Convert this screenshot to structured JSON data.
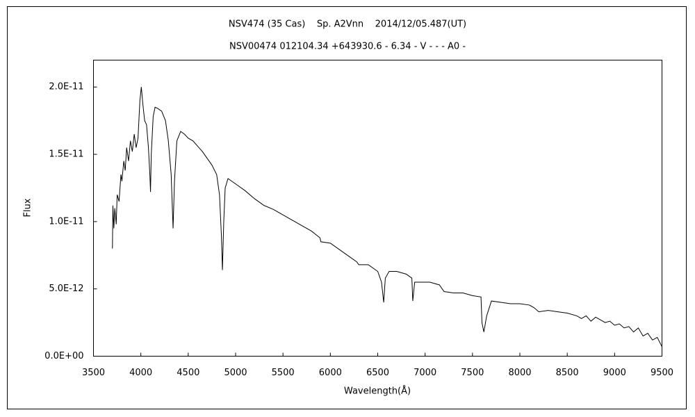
{
  "chart_data": {
    "type": "line",
    "title": "NSV474 (35 Cas)    Sp. A2Vnn    2014/12/05.487(UT)",
    "subtitle": "NSV00474 012104.34 +643930.6 - 6.34 - V - - - A0 -",
    "x_label": "Wavelength(Å)",
    "y_label": "Flux",
    "color": "#000000",
    "xlim": [
      3500,
      9500
    ],
    "xticks": [
      3500,
      4000,
      4500,
      5000,
      5500,
      6000,
      6500,
      7000,
      7500,
      8000,
      8500,
      9000,
      9500
    ],
    "ylim": [
      0,
      2.2e-11
    ],
    "yticks": [
      {
        "value": 0,
        "label": "0.0E+00"
      },
      {
        "value": 5e-12,
        "label": "5.0E-12"
      },
      {
        "value": 1e-11,
        "label": "1.0E-11"
      },
      {
        "value": 1.5e-11,
        "label": "1.5E-11"
      },
      {
        "value": 2e-11,
        "label": "2.0E-11"
      }
    ],
    "x": [
      3700,
      3705,
      3715,
      3725,
      3740,
      3750,
      3770,
      3790,
      3800,
      3820,
      3835,
      3850,
      3870,
      3890,
      3910,
      3930,
      3950,
      3970,
      3990,
      4005,
      4020,
      4040,
      4060,
      4080,
      4095,
      4102,
      4110,
      4130,
      4150,
      4180,
      4220,
      4260,
      4290,
      4320,
      4340,
      4355,
      4380,
      4420,
      4460,
      4500,
      4550,
      4600,
      4650,
      4700,
      4750,
      4800,
      4830,
      4850,
      4861,
      4875,
      4890,
      4920,
      4960,
      5000,
      5100,
      5200,
      5300,
      5400,
      5500,
      5600,
      5700,
      5800,
      5890,
      5900,
      6000,
      6100,
      6200,
      6280,
      6300,
      6400,
      6500,
      6540,
      6563,
      6580,
      6620,
      6700,
      6800,
      6860,
      6870,
      6890,
      6950,
      7050,
      7150,
      7200,
      7300,
      7400,
      7500,
      7590,
      7600,
      7620,
      7650,
      7700,
      7800,
      7900,
      8000,
      8100,
      8150,
      8200,
      8300,
      8400,
      8500,
      8600,
      8650,
      8700,
      8750,
      8800,
      8850,
      8900,
      8950,
      9000,
      9050,
      9100,
      9150,
      9200,
      9250,
      9300,
      9350,
      9400,
      9450,
      9500
    ],
    "values": [
      8e-12,
      1.12e-11,
      9.5e-12,
      1.1e-11,
      9.8e-12,
      1.2e-11,
      1.15e-11,
      1.35e-11,
      1.3e-11,
      1.45e-11,
      1.38e-11,
      1.55e-11,
      1.45e-11,
      1.6e-11,
      1.52e-11,
      1.65e-11,
      1.55e-11,
      1.62e-11,
      1.9e-11,
      2e-11,
      1.88e-11,
      1.75e-11,
      1.72e-11,
      1.55e-11,
      1.35e-11,
      1.22e-11,
      1.5e-11,
      1.78e-11,
      1.85e-11,
      1.84e-11,
      1.82e-11,
      1.75e-11,
      1.6e-11,
      1.35e-11,
      9.5e-12,
      1.3e-11,
      1.6e-11,
      1.67e-11,
      1.65e-11,
      1.62e-11,
      1.6e-11,
      1.56e-11,
      1.52e-11,
      1.47e-11,
      1.42e-11,
      1.35e-11,
      1.2e-11,
      9e-12,
      6.4e-12,
      1e-11,
      1.25e-11,
      1.32e-11,
      1.3e-11,
      1.28e-11,
      1.23e-11,
      1.17e-11,
      1.12e-11,
      1.09e-11,
      1.05e-11,
      1.01e-11,
      9.7e-12,
      9.3e-12,
      8.8e-12,
      8.5e-12,
      8.4e-12,
      7.9e-12,
      7.4e-12,
      7e-12,
      6.8e-12,
      6.8e-12,
      6.3e-12,
      5.5e-12,
      4e-12,
      5.8e-12,
      6.3e-12,
      6.3e-12,
      6.1e-12,
      5.8e-12,
      4.1e-12,
      5.5e-12,
      5.5e-12,
      5.5e-12,
      5.3e-12,
      4.8e-12,
      4.7e-12,
      4.7e-12,
      4.5e-12,
      4.4e-12,
      2.5e-12,
      1.8e-12,
      3e-12,
      4.1e-12,
      4e-12,
      3.9e-12,
      3.9e-12,
      3.8e-12,
      3.6e-12,
      3.3e-12,
      3.4e-12,
      3.3e-12,
      3.2e-12,
      3e-12,
      2.8e-12,
      3e-12,
      2.6e-12,
      2.9e-12,
      2.7e-12,
      2.5e-12,
      2.6e-12,
      2.3e-12,
      2.4e-12,
      2.1e-12,
      2.2e-12,
      1.8e-12,
      2.1e-12,
      1.5e-12,
      1.7e-12,
      1.2e-12,
      1.4e-12,
      7e-13
    ]
  }
}
